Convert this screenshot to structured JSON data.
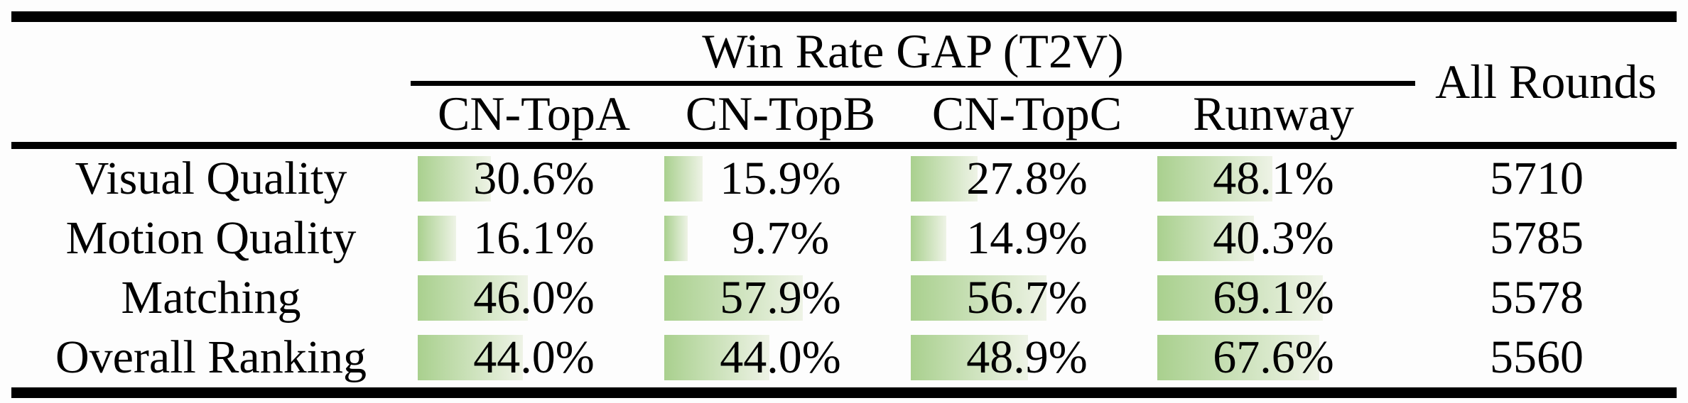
{
  "figure": {
    "group_header": "Win Rate GAP (T2V)",
    "all_rounds_header": "All Rounds",
    "model_columns": [
      "CN-TopA",
      "CN-TopB",
      "CN-TopC",
      "Runway"
    ],
    "rows": [
      {
        "label": "Visual Quality",
        "values": [
          30.6,
          15.9,
          27.8,
          48.1
        ],
        "display": [
          "30.6%",
          "15.9%",
          "27.8%",
          "48.1%"
        ],
        "all_rounds": "5710"
      },
      {
        "label": "Motion Quality",
        "values": [
          16.1,
          9.7,
          14.9,
          40.3
        ],
        "display": [
          "16.1%",
          "9.7%",
          "14.9%",
          "40.3%"
        ],
        "all_rounds": "5785"
      },
      {
        "label": "Matching",
        "values": [
          46.0,
          57.9,
          56.7,
          69.1
        ],
        "display": [
          "46.0%",
          "57.9%",
          "56.7%",
          "69.1%"
        ],
        "all_rounds": "5578"
      },
      {
        "label": "Overall Ranking",
        "values": [
          44.0,
          44.0,
          48.9,
          67.6
        ],
        "display": [
          "44.0%",
          "44.0%",
          "48.9%",
          "67.6%"
        ],
        "all_rounds": "5560"
      }
    ],
    "colors": {
      "bar_green": "#a9d08e",
      "bar_fade": "#eef3e6",
      "rule_black": "#000000"
    }
  },
  "chart_data": {
    "type": "table",
    "title": "Win Rate GAP (T2V)",
    "columns": [
      "CN-TopA",
      "CN-TopB",
      "CN-TopC",
      "Runway",
      "All Rounds"
    ],
    "row_labels": [
      "Visual Quality",
      "Motion Quality",
      "Matching",
      "Overall Ranking"
    ],
    "series": [
      {
        "name": "Visual Quality",
        "win_rate_gap_pct": [
          30.6,
          15.9,
          27.8,
          48.1
        ],
        "all_rounds": 5710
      },
      {
        "name": "Motion Quality",
        "win_rate_gap_pct": [
          16.1,
          9.7,
          14.9,
          40.3
        ],
        "all_rounds": 5785
      },
      {
        "name": "Matching",
        "win_rate_gap_pct": [
          46.0,
          57.9,
          56.7,
          69.1
        ],
        "all_rounds": 5578
      },
      {
        "name": "Overall Ranking",
        "win_rate_gap_pct": [
          44.0,
          44.0,
          48.9,
          67.6
        ],
        "all_rounds": 5560
      }
    ],
    "bar_style": "in-cell left-anchored gradient data bars, width proportional to percentage"
  }
}
